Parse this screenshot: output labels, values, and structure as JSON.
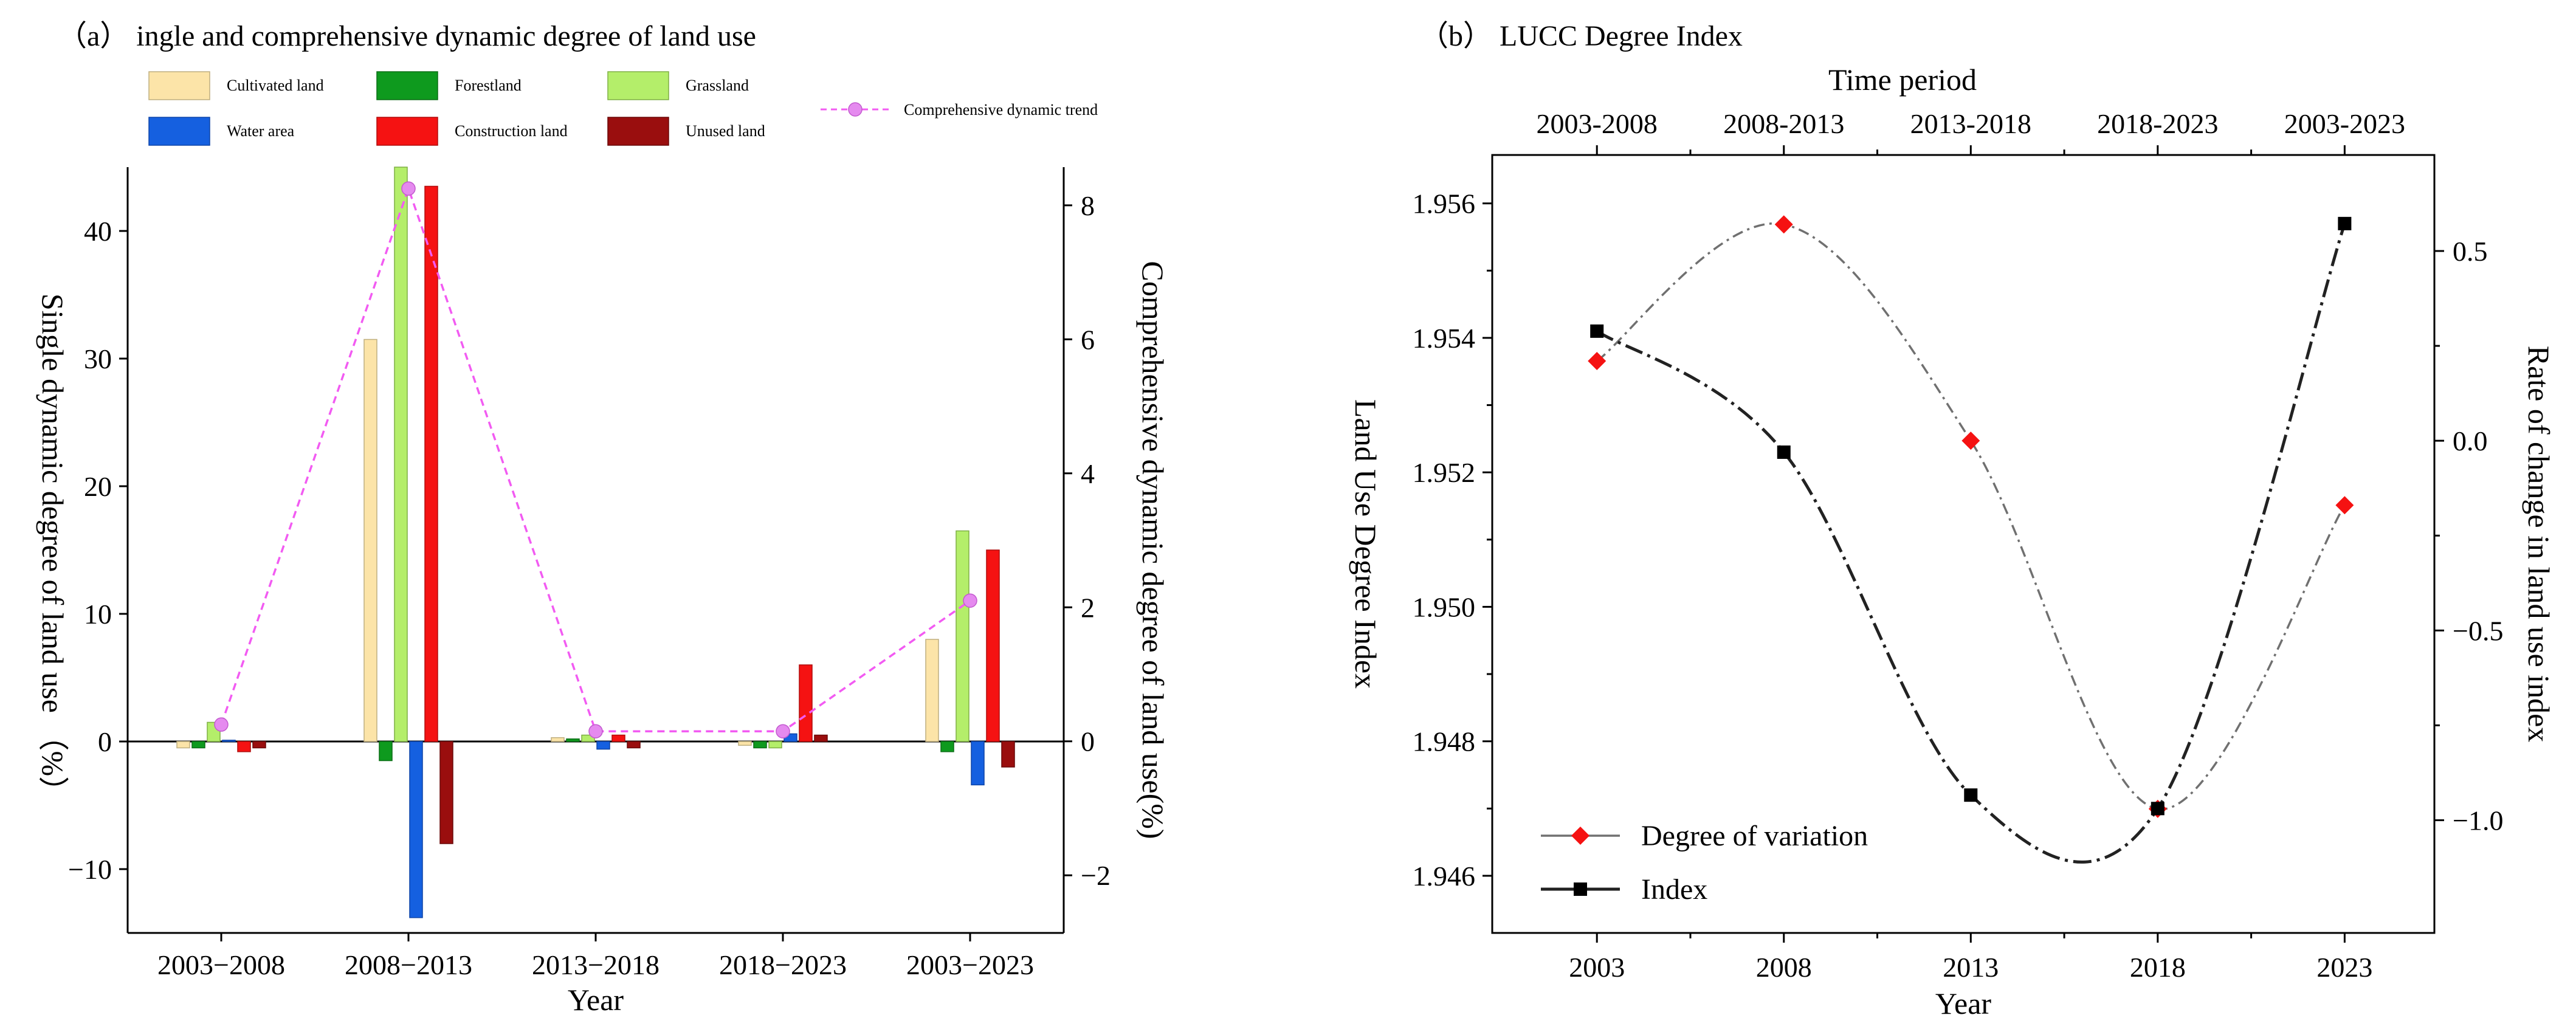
{
  "chart_data": [
    {
      "type": "bar",
      "panel_title": "（a） ingle and comprehensive dynamic degree of land use",
      "xlabel": "Year",
      "ylabel": "Single dynamic degree of land use （%）",
      "y2label": "Comprehensive dynamic degree of land use(%)",
      "categories": [
        "2003−2008",
        "2008−2013",
        "2013−2018",
        "2018−2023",
        "2003−2023"
      ],
      "ylim": [
        -15,
        45
      ],
      "y2lim": [
        -2.86,
        8.57
      ],
      "yticks": [
        -10,
        0,
        10,
        20,
        30,
        40
      ],
      "y2ticks": [
        -2,
        0,
        2,
        4,
        6,
        8
      ],
      "series": [
        {
          "name": "Cultivated land",
          "color": "#FCE4A8",
          "stroke": "#BFAF80",
          "values": [
            -0.5,
            31.5,
            0.3,
            -0.3,
            8.0
          ]
        },
        {
          "name": "Forestland",
          "color": "#0E9A1E",
          "stroke": "#0B6E16",
          "values": [
            -0.5,
            -1.5,
            0.2,
            -0.5,
            -0.8
          ]
        },
        {
          "name": "Grassland",
          "color": "#B4EE6A",
          "stroke": "#7FAF45",
          "values": [
            1.5,
            45.0,
            0.5,
            -0.5,
            16.5
          ]
        },
        {
          "name": "Water area",
          "color": "#1560E0",
          "stroke": "#0E45A8",
          "values": [
            0.1,
            -13.8,
            -0.6,
            0.6,
            -3.4
          ]
        },
        {
          "name": "Construction land",
          "color": "#F51212",
          "stroke": "#B00C0C",
          "values": [
            -0.8,
            43.5,
            0.5,
            6.0,
            15.0
          ]
        },
        {
          "name": "Unused land",
          "color": "#9A0E0E",
          "stroke": "#6A0808",
          "values": [
            -0.5,
            -8.0,
            -0.5,
            0.5,
            -2.0
          ]
        }
      ],
      "trend": {
        "name": "Comprehensive dynamic trend",
        "color": "#F25BF2",
        "marker": "#E58AEF",
        "values": [
          0.25,
          8.25,
          0.15,
          0.15,
          2.1
        ]
      }
    },
    {
      "type": "line",
      "panel_title": "（b） LUCC Degree Index",
      "top_axis_label": "Time period",
      "top_ticks": [
        "2003-2008",
        "2008-2013",
        "2013-2018",
        "2018-2023",
        "2003-2023"
      ],
      "xlabel": "Year",
      "ylabel": "Land Use Degree Index",
      "y2label": "Rate of change in land use index",
      "x": [
        2003,
        2008,
        2013,
        2018,
        2023
      ],
      "xlim": [
        2000.2,
        2025.4
      ],
      "ylim": [
        1.94515,
        1.95672
      ],
      "y2lim": [
        -1.297,
        0.753
      ],
      "yticks": [
        1.946,
        1.948,
        1.95,
        1.952,
        1.954,
        1.956
      ],
      "ytick_labels": [
        "1.946",
        "1.948",
        "1.950",
        "1.952",
        "1.954",
        "1.956"
      ],
      "y2ticks": [
        -1.0,
        -0.5,
        0.0,
        0.5
      ],
      "y2tick_labels": [
        "−1.0",
        "−0.5",
        "0.0",
        "0.5"
      ],
      "series": [
        {
          "name": "Degree of variation",
          "axis": "y2",
          "marker": "diamond",
          "color": "#F51212",
          "line_color": "#707070",
          "values": [
            0.21,
            0.57,
            0.0,
            -0.97,
            -0.17
          ]
        },
        {
          "name": "Index",
          "axis": "y",
          "marker": "square",
          "color": "#000000",
          "line_color": "#222222",
          "values": [
            1.9541,
            1.9523,
            1.9472,
            1.947,
            1.9557
          ]
        }
      ],
      "legend_position": "bottom-left"
    }
  ]
}
